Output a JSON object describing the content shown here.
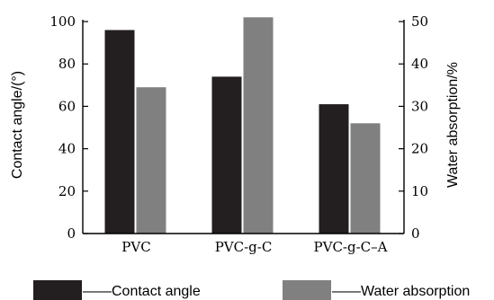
{
  "chart_data": {
    "type": "bar",
    "categories": [
      "PVC",
      "PVC-g-C",
      "PVC-g-C–A"
    ],
    "series": [
      {
        "name": "Contact angle",
        "axis": "left",
        "color": "#231f20",
        "values": [
          96,
          74,
          61
        ]
      },
      {
        "name": "Water absorption",
        "axis": "right",
        "color": "#808080",
        "values": [
          34.5,
          51,
          26
        ]
      }
    ],
    "y_left": {
      "label": "Contact angle/(°)",
      "ylim": [
        0,
        100
      ],
      "ticks": [
        0,
        20,
        40,
        60,
        80,
        100
      ]
    },
    "y_right": {
      "label": "Water absorption/%",
      "ylim": [
        0,
        50
      ],
      "ticks": [
        0,
        10,
        20,
        30,
        40,
        50
      ]
    },
    "grid": false,
    "legend": {
      "position": "bottom",
      "items": [
        "——Contact angle",
        "——Water absorption"
      ]
    }
  }
}
